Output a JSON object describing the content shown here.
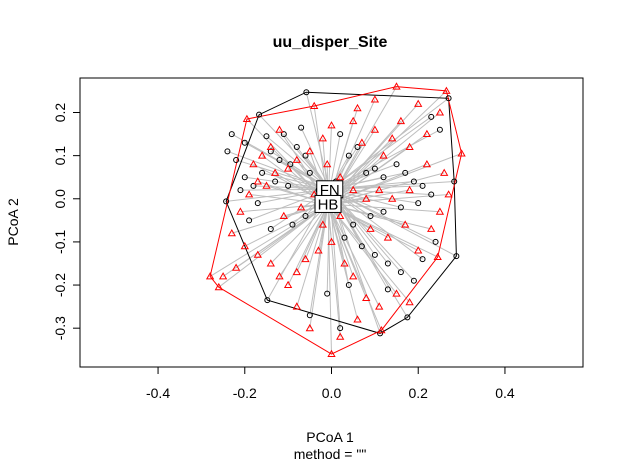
{
  "chart_data": {
    "type": "scatter",
    "title": "uu_disper_Site",
    "xlabel": "PCoA 1",
    "sublabel": "method = \"\"",
    "ylabel": "PCoA 2",
    "xlim": [
      -0.58,
      0.58
    ],
    "ylim": [
      -0.39,
      0.28
    ],
    "xticks": [
      -0.4,
      -0.2,
      0.0,
      0.2,
      0.4
    ],
    "xtick_labels": [
      "-0.4",
      "-0.2",
      "0.0",
      "0.2",
      "0.4"
    ],
    "yticks": [
      -0.3,
      -0.2,
      -0.1,
      0.0,
      0.1,
      0.2
    ],
    "ytick_labels": [
      "-0.3",
      "-0.2",
      "-0.1",
      "0.0",
      "0.1",
      "0.2"
    ],
    "grid": false,
    "colors": {
      "group1": "#000000",
      "group2": "#ff0000",
      "spider": "#bebebe",
      "frame": "#000000"
    },
    "series": [
      {
        "name": "FN",
        "marker": "circle",
        "color": "#000000",
        "centroid": [
          -0.004,
          0.022
        ],
        "hull": [
          [
            -0.058,
            0.247
          ],
          [
            0.27,
            0.233
          ],
          [
            0.283,
            0.04
          ],
          [
            0.288,
            -0.133
          ],
          [
            0.175,
            -0.275
          ],
          [
            0.112,
            -0.312
          ],
          [
            -0.148,
            -0.235
          ],
          [
            -0.243,
            -0.006
          ],
          [
            -0.167,
            0.195
          ]
        ],
        "points": [
          [
            -0.058,
            0.247
          ],
          [
            0.27,
            0.233
          ],
          [
            0.283,
            0.04
          ],
          [
            0.288,
            -0.133
          ],
          [
            0.175,
            -0.275
          ],
          [
            0.112,
            -0.312
          ],
          [
            -0.148,
            -0.235
          ],
          [
            -0.243,
            -0.006
          ],
          [
            -0.167,
            0.195
          ],
          [
            -0.15,
            0.145
          ],
          [
            -0.14,
            0.11
          ],
          [
            -0.12,
            0.09
          ],
          [
            -0.11,
            0.15
          ],
          [
            -0.095,
            0.08
          ],
          [
            -0.08,
            0.12
          ],
          [
            -0.07,
            0.165
          ],
          [
            -0.06,
            0.1
          ],
          [
            -0.05,
            0.06
          ],
          [
            -0.2,
            0.05
          ],
          [
            -0.21,
            0.02
          ],
          [
            -0.18,
            0.03
          ],
          [
            -0.16,
            0.06
          ],
          [
            -0.17,
            -0.01
          ],
          [
            -0.13,
            0.04
          ],
          [
            -0.1,
            0.03
          ],
          [
            -0.06,
            -0.04
          ],
          [
            -0.09,
            -0.06
          ],
          [
            -0.14,
            -0.07
          ],
          [
            -0.19,
            -0.05
          ],
          [
            0.02,
            0.15
          ],
          [
            0.04,
            0.1
          ],
          [
            0.06,
            0.12
          ],
          [
            0.08,
            0.06
          ],
          [
            0.1,
            0.07
          ],
          [
            0.12,
            0.05
          ],
          [
            0.15,
            0.08
          ],
          [
            0.17,
            0.06
          ],
          [
            0.19,
            0.04
          ],
          [
            0.21,
            0.03
          ],
          [
            0.23,
            0.01
          ],
          [
            0.2,
            -0.01
          ],
          [
            0.16,
            -0.02
          ],
          [
            0.12,
            -0.03
          ],
          [
            0.09,
            -0.04
          ],
          [
            0.05,
            -0.06
          ],
          [
            0.03,
            -0.09
          ],
          [
            0.07,
            -0.11
          ],
          [
            0.1,
            -0.13
          ],
          [
            0.13,
            -0.15
          ],
          [
            0.16,
            -0.17
          ],
          [
            0.19,
            -0.19
          ],
          [
            0.21,
            -0.14
          ],
          [
            0.24,
            -0.1
          ],
          [
            0.04,
            -0.2
          ],
          [
            -0.01,
            -0.22
          ],
          [
            -0.05,
            -0.27
          ],
          [
            0.02,
            -0.3
          ],
          [
            0.13,
            -0.21
          ],
          [
            -0.02,
            -0.01
          ],
          [
            -0.03,
            0.02
          ],
          [
            0.01,
            0.04
          ],
          [
            -0.22,
            0.09
          ],
          [
            -0.24,
            0.11
          ],
          [
            -0.2,
            0.13
          ],
          [
            -0.23,
            0.15
          ],
          [
            0.25,
            0.16
          ],
          [
            0.23,
            0.19
          ]
        ]
      },
      {
        "name": "HB",
        "marker": "triangle",
        "color": "#ff0000",
        "centroid": [
          -0.008,
          -0.012
        ],
        "hull": [
          [
            0.15,
            0.26
          ],
          [
            0.265,
            0.25
          ],
          [
            0.3,
            0.105
          ],
          [
            0.245,
            -0.135
          ],
          [
            0.115,
            -0.305
          ],
          [
            0.0,
            -0.36
          ],
          [
            -0.26,
            -0.205
          ],
          [
            -0.28,
            -0.18
          ],
          [
            -0.195,
            0.185
          ],
          [
            -0.04,
            0.215
          ]
        ],
        "points": [
          [
            0.15,
            0.26
          ],
          [
            0.265,
            0.25
          ],
          [
            0.3,
            0.105
          ],
          [
            0.245,
            -0.135
          ],
          [
            0.115,
            -0.305
          ],
          [
            0.0,
            -0.36
          ],
          [
            -0.26,
            -0.205
          ],
          [
            -0.28,
            -0.18
          ],
          [
            -0.195,
            0.185
          ],
          [
            -0.04,
            0.215
          ],
          [
            0.25,
            0.2
          ],
          [
            0.22,
            0.15
          ],
          [
            0.18,
            0.12
          ],
          [
            0.14,
            0.14
          ],
          [
            0.1,
            0.16
          ],
          [
            0.05,
            0.18
          ],
          [
            0.0,
            0.17
          ],
          [
            -0.02,
            0.14
          ],
          [
            -0.05,
            0.11
          ],
          [
            -0.08,
            0.09
          ],
          [
            -0.1,
            0.07
          ],
          [
            -0.13,
            0.06
          ],
          [
            -0.15,
            0.03
          ],
          [
            -0.17,
            0.04
          ],
          [
            -0.19,
            0.01
          ],
          [
            -0.21,
            -0.03
          ],
          [
            -0.23,
            -0.08
          ],
          [
            -0.2,
            -0.11
          ],
          [
            -0.17,
            -0.13
          ],
          [
            -0.14,
            -0.15
          ],
          [
            -0.12,
            -0.18
          ],
          [
            -0.1,
            -0.2
          ],
          [
            -0.08,
            -0.17
          ],
          [
            -0.06,
            -0.14
          ],
          [
            -0.03,
            -0.12
          ],
          [
            0.0,
            -0.1
          ],
          [
            0.03,
            -0.15
          ],
          [
            0.05,
            -0.18
          ],
          [
            0.08,
            -0.23
          ],
          [
            0.06,
            -0.28
          ],
          [
            0.02,
            -0.32
          ],
          [
            -0.05,
            -0.3
          ],
          [
            -0.08,
            -0.25
          ],
          [
            0.11,
            -0.25
          ],
          [
            0.15,
            -0.22
          ],
          [
            0.18,
            -0.24
          ],
          [
            0.2,
            -0.12
          ],
          [
            0.23,
            -0.07
          ],
          [
            0.25,
            -0.03
          ],
          [
            0.27,
            0.01
          ],
          [
            0.26,
            0.06
          ],
          [
            0.22,
            0.08
          ],
          [
            0.18,
            0.02
          ],
          [
            0.14,
            0.0
          ],
          [
            0.11,
            0.02
          ],
          [
            0.08,
            0.0
          ],
          [
            0.05,
            0.02
          ],
          [
            0.02,
            0.05
          ],
          [
            -0.01,
            0.08
          ],
          [
            0.07,
            0.13
          ],
          [
            0.12,
            0.1
          ],
          [
            0.16,
            0.18
          ],
          [
            0.2,
            0.22
          ],
          [
            0.1,
            0.23
          ],
          [
            0.06,
            0.21
          ],
          [
            -0.12,
            0.16
          ],
          [
            -0.14,
            0.12
          ],
          [
            -0.16,
            0.1
          ],
          [
            -0.18,
            0.08
          ],
          [
            -0.11,
            -0.04
          ],
          [
            -0.07,
            -0.02
          ],
          [
            -0.04,
            0.01
          ],
          [
            -0.25,
            -0.18
          ],
          [
            -0.22,
            -0.16
          ],
          [
            -0.02,
            -0.06
          ],
          [
            0.02,
            -0.04
          ],
          [
            0.09,
            -0.07
          ],
          [
            0.13,
            -0.09
          ],
          [
            0.17,
            -0.06
          ]
        ]
      }
    ]
  }
}
